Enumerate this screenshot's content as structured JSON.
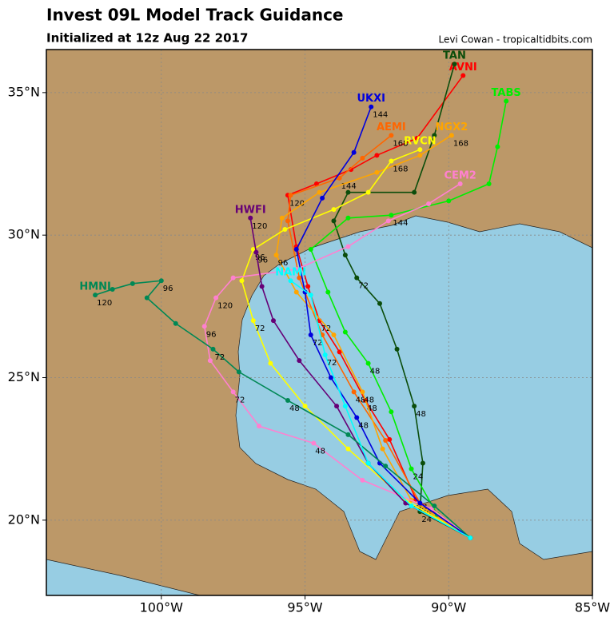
{
  "map": {
    "title": "Invest 09L Model Track Guidance",
    "subtitle": "Initialized at 12z Aug 22 2017",
    "credit": "Levi Cowan - tropicaltidbits.com",
    "xlim": [
      -104,
      -85
    ],
    "ylim": [
      17.36,
      36.51
    ],
    "xticks": [
      {
        "value": -100,
        "label": "100°W"
      },
      {
        "value": -95,
        "label": "95°W"
      },
      {
        "value": -90,
        "label": "90°W"
      },
      {
        "value": -85,
        "label": "85°W"
      }
    ],
    "yticks": [
      {
        "value": 20,
        "label": "20°N"
      },
      {
        "value": 25,
        "label": "25°N"
      },
      {
        "value": 30,
        "label": "30°N"
      },
      {
        "value": 35,
        "label": "35°N"
      }
    ],
    "grid": true,
    "tracks": [
      {
        "name": "AVNI",
        "color": "#ff0000",
        "points": [
          {
            "lon": -89.25,
            "lat": 19.38
          },
          {
            "lon": -91.14,
            "lat": 20.73,
            "hour": "24"
          },
          {
            "lon": -92.06,
            "lat": 22.83
          },
          {
            "lon": -92.9,
            "lat": 24.2,
            "hour": "48"
          },
          {
            "lon": -93.8,
            "lat": 25.9
          },
          {
            "lon": -94.5,
            "lat": 27.0,
            "hour": "72"
          },
          {
            "lon": -94.9,
            "lat": 28.2
          },
          {
            "lon": -95.3,
            "lat": 29.6
          },
          {
            "lon": -95.6,
            "lat": 31.4,
            "hour": "120"
          },
          {
            "lon": -94.6,
            "lat": 31.8
          },
          {
            "lon": -93.4,
            "lat": 32.3
          },
          {
            "lon": -92.5,
            "lat": 32.8
          },
          {
            "lon": -91.1,
            "lat": 33.4
          },
          {
            "lon": -89.5,
            "lat": 35.6
          }
        ]
      },
      {
        "name": "AEMI",
        "color": "#ff6600",
        "points": [
          {
            "lon": -89.25,
            "lat": 19.38
          },
          {
            "lon": -91.0,
            "lat": 20.6,
            "hour": "24"
          },
          {
            "lon": -92.2,
            "lat": 22.8
          },
          {
            "lon": -93.3,
            "lat": 24.5,
            "hour": "48"
          },
          {
            "lon": -94.4,
            "lat": 26.5
          },
          {
            "lon": -95.2,
            "lat": 28.5
          },
          {
            "lon": -95.6,
            "lat": 30.5
          },
          {
            "lon": -95.5,
            "lat": 31.4
          },
          {
            "lon": -93.8,
            "lat": 32.0,
            "hour": "144"
          },
          {
            "lon": -93.0,
            "lat": 32.7
          },
          {
            "lon": -92.0,
            "lat": 33.5,
            "hour": "168"
          }
        ]
      },
      {
        "name": "TAN",
        "color": "#0b4d0b",
        "points": [
          {
            "lon": -89.25,
            "lat": 19.38
          },
          {
            "lon": -91.0,
            "lat": 20.3,
            "hour": "24"
          },
          {
            "lon": -90.9,
            "lat": 22.0
          },
          {
            "lon": -91.2,
            "lat": 24.0,
            "hour": "48"
          },
          {
            "lon": -91.8,
            "lat": 26.0
          },
          {
            "lon": -92.4,
            "lat": 27.6
          },
          {
            "lon": -93.2,
            "lat": 28.5,
            "hour": "72"
          },
          {
            "lon": -93.6,
            "lat": 29.3
          },
          {
            "lon": -94.0,
            "lat": 30.5
          },
          {
            "lon": -93.5,
            "lat": 31.5
          },
          {
            "lon": -91.2,
            "lat": 31.5
          },
          {
            "lon": -90.5,
            "lat": 33.5
          },
          {
            "lon": -89.8,
            "lat": 36.0
          }
        ]
      },
      {
        "name": "NGX2",
        "color": "#ffa500",
        "points": [
          {
            "lon": -89.25,
            "lat": 19.38
          },
          {
            "lon": -91.3,
            "lat": 20.7
          },
          {
            "lon": -92.3,
            "lat": 22.5
          },
          {
            "lon": -93.0,
            "lat": 24.5,
            "hour": "48"
          },
          {
            "lon": -94.0,
            "lat": 26.5
          },
          {
            "lon": -95.3,
            "lat": 28.0
          },
          {
            "lon": -96.0,
            "lat": 29.3,
            "hour": "96"
          },
          {
            "lon": -95.8,
            "lat": 30.6
          },
          {
            "lon": -94.5,
            "lat": 31.5
          },
          {
            "lon": -92.5,
            "lat": 32.2
          },
          {
            "lon": -91.0,
            "lat": 32.8
          },
          {
            "lon": -89.9,
            "lat": 33.5,
            "hour": "168"
          }
        ]
      },
      {
        "name": "TABS",
        "color": "#00ee00",
        "points": [
          {
            "lon": -89.25,
            "lat": 19.38
          },
          {
            "lon": -90.4,
            "lat": 20.2
          },
          {
            "lon": -91.3,
            "lat": 21.8,
            "hour": "24"
          },
          {
            "lon": -92.0,
            "lat": 23.8
          },
          {
            "lon": -92.8,
            "lat": 25.5,
            "hour": "48"
          },
          {
            "lon": -93.6,
            "lat": 26.6
          },
          {
            "lon": -94.2,
            "lat": 28.0
          },
          {
            "lon": -94.8,
            "lat": 29.5
          },
          {
            "lon": -93.5,
            "lat": 30.6
          },
          {
            "lon": -92.0,
            "lat": 30.7,
            "hour": "144"
          },
          {
            "lon": -90.0,
            "lat": 31.2
          },
          {
            "lon": -88.6,
            "lat": 31.8
          },
          {
            "lon": -88.3,
            "lat": 33.1
          },
          {
            "lon": -88.0,
            "lat": 34.7
          }
        ]
      },
      {
        "name": "RVCN",
        "color": "#ffff00",
        "points": [
          {
            "lon": -89.25,
            "lat": 19.38
          },
          {
            "lon": -91.5,
            "lat": 20.7
          },
          {
            "lon": -93.5,
            "lat": 22.5
          },
          {
            "lon": -95.0,
            "lat": 24.0
          },
          {
            "lon": -96.2,
            "lat": 25.5
          },
          {
            "lon": -96.8,
            "lat": 27.0,
            "hour": "72"
          },
          {
            "lon": -97.2,
            "lat": 28.4
          },
          {
            "lon": -96.8,
            "lat": 29.5,
            "hour": "96"
          },
          {
            "lon": -95.7,
            "lat": 30.2
          },
          {
            "lon": -94.0,
            "lat": 30.9
          },
          {
            "lon": -92.8,
            "lat": 31.5
          },
          {
            "lon": -92.0,
            "lat": 32.6,
            "hour": "168"
          },
          {
            "lon": -91.0,
            "lat": 33.0
          }
        ]
      },
      {
        "name": "CEM2",
        "color": "#ff80d0",
        "points": [
          {
            "lon": -89.25,
            "lat": 19.38
          },
          {
            "lon": -90.6,
            "lat": 20.4
          },
          {
            "lon": -93.0,
            "lat": 21.4
          },
          {
            "lon": -94.7,
            "lat": 22.7,
            "hour": "48"
          },
          {
            "lon": -96.6,
            "lat": 23.3
          },
          {
            "lon": -97.5,
            "lat": 24.5,
            "hour": "72"
          },
          {
            "lon": -98.3,
            "lat": 25.6
          },
          {
            "lon": -98.5,
            "lat": 26.8,
            "hour": "96"
          },
          {
            "lon": -98.1,
            "lat": 27.8,
            "hour": "120"
          },
          {
            "lon": -97.5,
            "lat": 28.5
          },
          {
            "lon": -95.3,
            "lat": 28.8
          },
          {
            "lon": -93.5,
            "lat": 29.6
          },
          {
            "lon": -92.1,
            "lat": 30.5
          },
          {
            "lon": -90.7,
            "lat": 31.1
          },
          {
            "lon": -89.6,
            "lat": 31.8
          }
        ]
      },
      {
        "name": "UKXI",
        "color": "#0000dd",
        "points": [
          {
            "lon": -89.25,
            "lat": 19.38
          },
          {
            "lon": -91.0,
            "lat": 20.6
          },
          {
            "lon": -92.4,
            "lat": 22.0
          },
          {
            "lon": -93.2,
            "lat": 23.6,
            "hour": "48"
          },
          {
            "lon": -94.1,
            "lat": 25.0
          },
          {
            "lon": -94.8,
            "lat": 26.5,
            "hour": "72"
          },
          {
            "lon": -95.0,
            "lat": 28.0
          },
          {
            "lon": -95.3,
            "lat": 29.5
          },
          {
            "lon": -94.4,
            "lat": 31.3
          },
          {
            "lon": -93.3,
            "lat": 32.9
          },
          {
            "lon": -92.7,
            "lat": 34.5,
            "hour": "144"
          }
        ]
      },
      {
        "name": "HWFI",
        "color": "#660077",
        "points": [
          {
            "lon": -89.25,
            "lat": 19.38
          },
          {
            "lon": -91.5,
            "lat": 20.6
          },
          {
            "lon": -92.8,
            "lat": 22.0
          },
          {
            "lon": -93.9,
            "lat": 24.0
          },
          {
            "lon": -95.2,
            "lat": 25.6
          },
          {
            "lon": -96.1,
            "lat": 27.0
          },
          {
            "lon": -96.5,
            "lat": 28.2
          },
          {
            "lon": -96.7,
            "lat": 29.4,
            "hour": "96"
          },
          {
            "lon": -96.9,
            "lat": 30.6,
            "hour": "120"
          }
        ]
      },
      {
        "name": "HMNI",
        "color": "#008855",
        "points": [
          {
            "lon": -89.25,
            "lat": 19.38
          },
          {
            "lon": -90.5,
            "lat": 20.5
          },
          {
            "lon": -92.2,
            "lat": 21.9
          },
          {
            "lon": -93.5,
            "lat": 23.0
          },
          {
            "lon": -95.6,
            "lat": 24.2,
            "hour": "48"
          },
          {
            "lon": -97.3,
            "lat": 25.2
          },
          {
            "lon": -98.2,
            "lat": 26.0,
            "hour": "72"
          },
          {
            "lon": -99.5,
            "lat": 26.9
          },
          {
            "lon": -100.5,
            "lat": 27.8
          },
          {
            "lon": -100.0,
            "lat": 28.4,
            "hour": "96"
          },
          {
            "lon": -101.0,
            "lat": 28.3
          },
          {
            "lon": -101.7,
            "lat": 28.1
          },
          {
            "lon": -102.3,
            "lat": 27.9,
            "hour": "120"
          }
        ]
      },
      {
        "name": "NAMI",
        "color": "#00ffff",
        "points": [
          {
            "lon": -89.25,
            "lat": 19.38
          },
          {
            "lon": -91.3,
            "lat": 20.5
          },
          {
            "lon": -92.8,
            "lat": 22.0
          },
          {
            "lon": -93.6,
            "lat": 24.0
          },
          {
            "lon": -94.3,
            "lat": 25.8,
            "hour": "72"
          },
          {
            "lon": -94.8,
            "lat": 27.9
          },
          {
            "lon": -95.5,
            "lat": 28.4
          }
        ]
      }
    ]
  }
}
